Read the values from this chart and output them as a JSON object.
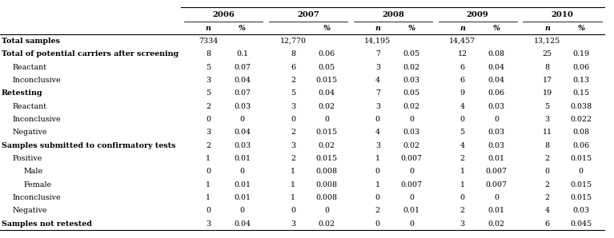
{
  "years": [
    "2006",
    "2007",
    "2008",
    "2009",
    "2010"
  ],
  "show_n_header": [
    true,
    false,
    true,
    true,
    true
  ],
  "rows": [
    {
      "label": "Total samples",
      "bold": true,
      "indent": 0,
      "values": [
        "7334",
        "",
        "12,770",
        "",
        "14,195",
        "",
        "14,457",
        "",
        "13,125",
        ""
      ]
    },
    {
      "label": "Total of potential carriers after screening",
      "bold": true,
      "indent": 0,
      "values": [
        "8",
        "0.1",
        "8",
        "0.06",
        "7",
        "0.05",
        "12",
        "0.08",
        "25",
        "0.19"
      ]
    },
    {
      "label": "Reactant",
      "bold": false,
      "indent": 1,
      "values": [
        "5",
        "0.07",
        "6",
        "0.05",
        "3",
        "0.02",
        "6",
        "0.04",
        "8",
        "0.06"
      ]
    },
    {
      "label": "Inconclusive",
      "bold": false,
      "indent": 1,
      "values": [
        "3",
        "0.04",
        "2",
        "0.015",
        "4",
        "0.03",
        "6",
        "0.04",
        "17",
        "0.13"
      ]
    },
    {
      "label": "Retesting",
      "bold": true,
      "indent": 0,
      "values": [
        "5",
        "0.07",
        "5",
        "0.04",
        "7",
        "0.05",
        "9",
        "0.06",
        "19",
        "0.15"
      ]
    },
    {
      "label": "Reactant",
      "bold": false,
      "indent": 1,
      "values": [
        "2",
        "0.03",
        "3",
        "0.02",
        "3",
        "0.02",
        "4",
        "0.03",
        "5",
        "0.038"
      ]
    },
    {
      "label": "Inconclusive",
      "bold": false,
      "indent": 1,
      "values": [
        "0",
        "0",
        "0",
        "0",
        "0",
        "0",
        "0",
        "0",
        "3",
        "0.022"
      ]
    },
    {
      "label": "Negative",
      "bold": false,
      "indent": 1,
      "values": [
        "3",
        "0.04",
        "2",
        "0.015",
        "4",
        "0.03",
        "5",
        "0.03",
        "11",
        "0.08"
      ]
    },
    {
      "label": "Samples submitted to confirmatory tests",
      "bold": true,
      "indent": 0,
      "values": [
        "2",
        "0.03",
        "3",
        "0.02",
        "3",
        "0.02",
        "4",
        "0.03",
        "8",
        "0.06"
      ]
    },
    {
      "label": "Positive",
      "bold": false,
      "indent": 1,
      "values": [
        "1",
        "0.01",
        "2",
        "0.015",
        "1",
        "0.007",
        "2",
        "0.01",
        "2",
        "0.015"
      ]
    },
    {
      "label": "Male",
      "bold": false,
      "indent": 2,
      "values": [
        "0",
        "0",
        "1",
        "0.008",
        "0",
        "0",
        "1",
        "0.007",
        "0",
        "0"
      ]
    },
    {
      "label": "Female",
      "bold": false,
      "indent": 2,
      "values": [
        "1",
        "0.01",
        "1",
        "0.008",
        "1",
        "0.007",
        "1",
        "0.007",
        "2",
        "0.015"
      ]
    },
    {
      "label": "Inconclusive",
      "bold": false,
      "indent": 1,
      "values": [
        "1",
        "0.01",
        "1",
        "0.008",
        "0",
        "0",
        "0",
        "0",
        "2",
        "0.015"
      ]
    },
    {
      "label": "Negative",
      "bold": false,
      "indent": 1,
      "values": [
        "0",
        "0",
        "0",
        "0",
        "2",
        "0.01",
        "2",
        "0.01",
        "4",
        "0.03"
      ]
    },
    {
      "label": "Samples not retested",
      "bold": true,
      "indent": 0,
      "values": [
        "3",
        "0.04",
        "3",
        "0.02",
        "0",
        "0",
        "3",
        "0.02",
        "6",
        "0.045"
      ]
    }
  ],
  "background_color": "#ffffff",
  "text_color": "#000000",
  "line_color": "#000000",
  "font_size": 6.8,
  "header_font_size": 7.2
}
